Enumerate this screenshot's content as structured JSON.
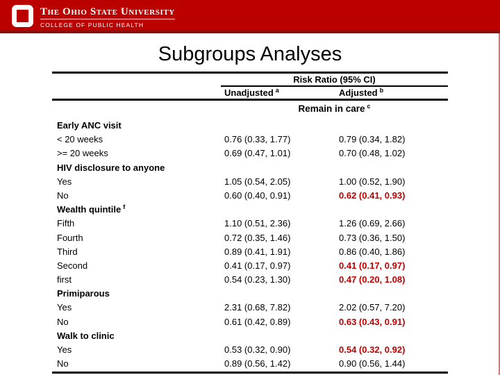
{
  "header": {
    "university": "The Ohio State University",
    "college": "COLLEGE OF PUBLIC HEALTH"
  },
  "title": "Subgroups Analyses",
  "table": {
    "span_header": "Risk Ratio (95% CI)",
    "columns": [
      {
        "label": "Unadjusted",
        "sup": "a"
      },
      {
        "label": "Adjusted",
        "sup": "b"
      }
    ],
    "section": {
      "label": "Remain in care",
      "sup": "c"
    },
    "rows": [
      {
        "type": "group",
        "label": "Early ANC visit"
      },
      {
        "type": "data",
        "label": "< 20 weeks",
        "unadjusted": "0.76 (0.33, 1.77)",
        "adjusted": "0.79 (0.34, 1.82)",
        "adjusted_highlight": false
      },
      {
        "type": "data",
        "label": ">= 20 weeks",
        "unadjusted": "0.69 (0.47, 1.01)",
        "adjusted": "0.70 (0.48, 1.02)",
        "adjusted_highlight": false
      },
      {
        "type": "group",
        "label": "HIV disclosure to anyone"
      },
      {
        "type": "data",
        "label": "Yes",
        "unadjusted": "1.05 (0.54, 2.05)",
        "adjusted": "1.00 (0.52, 1.90)",
        "adjusted_highlight": false
      },
      {
        "type": "data",
        "label": "No",
        "unadjusted": "0.60 (0.40, 0.91)",
        "adjusted": "0.62 (0.41, 0.93)",
        "adjusted_highlight": true
      },
      {
        "type": "group",
        "label": "Wealth quintile",
        "sup": "f"
      },
      {
        "type": "data",
        "label": "Fifth",
        "unadjusted": "1.10 (0.51, 2.36)",
        "adjusted": "1.26 (0.69, 2.66)",
        "adjusted_highlight": false
      },
      {
        "type": "data",
        "label": "Fourth",
        "unadjusted": "0.72 (0.35, 1.46)",
        "adjusted": "0.73 (0.36, 1.50)",
        "adjusted_highlight": false
      },
      {
        "type": "data",
        "label": "Third",
        "unadjusted": "0.89 (0.41, 1.91)",
        "adjusted": "0.86 (0.40, 1.86)",
        "adjusted_highlight": false
      },
      {
        "type": "data",
        "label": "Second",
        "unadjusted": "0.41 (0.17, 0.97)",
        "adjusted": "0.41 (0.17, 0.97)",
        "adjusted_highlight": true
      },
      {
        "type": "data",
        "label": "first",
        "unadjusted": "0.54 (0.23, 1.30)",
        "adjusted": "0.47 (0.20, 1.08)",
        "adjusted_highlight": true
      },
      {
        "type": "group",
        "label": "Primiparous"
      },
      {
        "type": "data",
        "label": "Yes",
        "unadjusted": "2.31 (0.68, 7.82)",
        "adjusted": "2.02 (0.57, 7.20)",
        "adjusted_highlight": false
      },
      {
        "type": "data",
        "label": "No",
        "unadjusted": "0.61 (0.42, 0.89)",
        "adjusted": "0.63 (0.43, 0.91)",
        "adjusted_highlight": true
      },
      {
        "type": "group",
        "label": "Walk to clinic"
      },
      {
        "type": "data",
        "label": "Yes",
        "unadjusted": "0.53 (0.32, 0.90)",
        "adjusted": "0.54 (0.32, 0.92)",
        "adjusted_highlight": true
      },
      {
        "type": "data",
        "label": "No",
        "unadjusted": "0.89 (0.56, 1.42)",
        "adjusted": "0.90 (0.56, 1.44)",
        "adjusted_highlight": false
      }
    ]
  },
  "colors": {
    "scarlet": "#bb0000",
    "header_edge": "#8a0c0c",
    "highlight_red": "#c00000"
  }
}
